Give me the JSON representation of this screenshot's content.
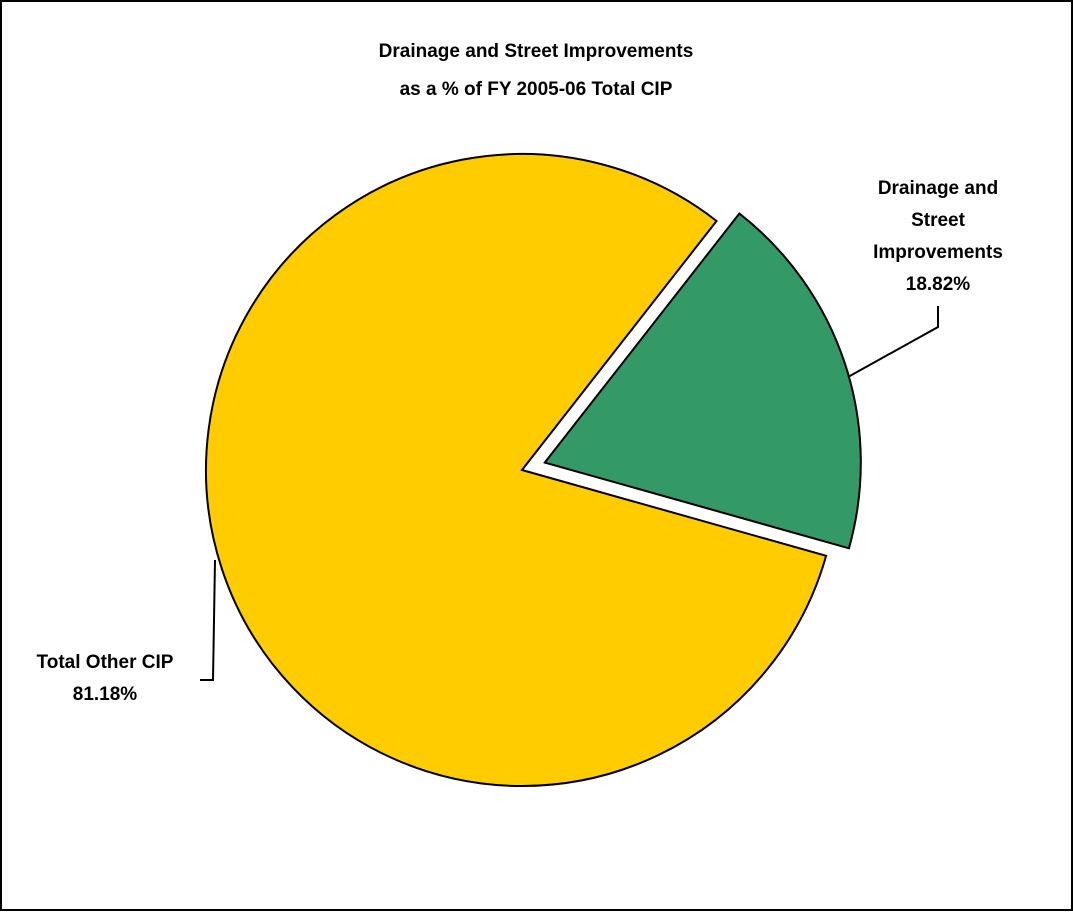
{
  "chart_data": {
    "type": "pie",
    "title_lines": [
      "Drainage and Street Improvements",
      "as a % of FY 2005-06 Total CIP"
    ],
    "slices": [
      {
        "label_lines": [
          "Drainage and",
          "Street",
          "Improvements"
        ],
        "percent_label": "18.82%",
        "value": 18.82,
        "color": "#339966",
        "exploded": true
      },
      {
        "label_lines": [
          "Total Other CIP"
        ],
        "percent_label": "81.18%",
        "value": 81.18,
        "color": "#FFCC00",
        "exploded": false
      }
    ],
    "legend": "none"
  }
}
